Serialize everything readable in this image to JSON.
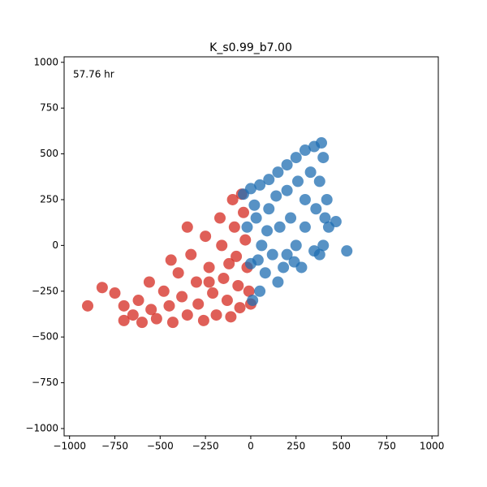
{
  "chart_data": {
    "type": "scatter",
    "title": "K_s0.99_b7.00",
    "annotation": "57.76 hr",
    "xlim": [
      -1030,
      1035
    ],
    "ylim": [
      -1040,
      1030
    ],
    "xticks": [
      {
        "value": -1000,
        "label": "−1000"
      },
      {
        "value": -750,
        "label": "−750"
      },
      {
        "value": -500,
        "label": "−500"
      },
      {
        "value": -250,
        "label": "−250"
      },
      0,
      250,
      500,
      750,
      1000
    ],
    "yticks": [
      {
        "value": -1000,
        "label": "−1000"
      },
      {
        "value": -750,
        "label": "−750"
      },
      {
        "value": -500,
        "label": "−500"
      },
      {
        "value": -250,
        "label": "−250"
      },
      0,
      250,
      500,
      750,
      1000
    ],
    "series": [
      {
        "color": "#d42a20",
        "x": [
          -700,
          -650,
          -600,
          -620,
          -550,
          -520,
          -480,
          -450,
          -430,
          -400,
          -380,
          -350,
          -330,
          -300,
          -290,
          -260,
          -250,
          -230,
          -210,
          -190,
          -170,
          -160,
          -150,
          -130,
          -110,
          -100,
          -90,
          -80,
          -70,
          -60,
          -50,
          -40,
          -30,
          -20,
          -10,
          0,
          -560,
          -440,
          -350,
          -700,
          -750,
          -820,
          -900,
          -230,
          -120
        ],
        "values": [
          -410,
          -380,
          -420,
          -300,
          -350,
          -400,
          -250,
          -330,
          -420,
          -150,
          -280,
          -380,
          -50,
          -200,
          -320,
          -410,
          50,
          -120,
          -260,
          -380,
          150,
          0,
          -180,
          -300,
          -390,
          250,
          100,
          -60,
          -220,
          -340,
          280,
          180,
          30,
          -120,
          -250,
          -320,
          -200,
          -80,
          100,
          -330,
          -260,
          -230,
          -330,
          -200,
          -100
        ]
      },
      {
        "color": "#1f6db1",
        "x": [
          -40,
          0,
          50,
          100,
          150,
          200,
          250,
          300,
          350,
          390,
          400,
          420,
          430,
          400,
          380,
          -20,
          0,
          10,
          50,
          80,
          30,
          60,
          100,
          120,
          150,
          160,
          200,
          200,
          220,
          250,
          260,
          280,
          300,
          300,
          330,
          350,
          360,
          380,
          410,
          90,
          140,
          40,
          530,
          470,
          20,
          180,
          240
        ],
        "values": [
          280,
          310,
          330,
          360,
          400,
          440,
          480,
          520,
          540,
          560,
          480,
          250,
          100,
          0,
          -50,
          100,
          -100,
          -300,
          -250,
          -150,
          150,
          0,
          200,
          -50,
          -200,
          100,
          300,
          -50,
          150,
          0,
          350,
          -120,
          100,
          250,
          400,
          -30,
          200,
          350,
          150,
          80,
          270,
          -80,
          -30,
          130,
          220,
          -120,
          -90
        ]
      }
    ]
  }
}
